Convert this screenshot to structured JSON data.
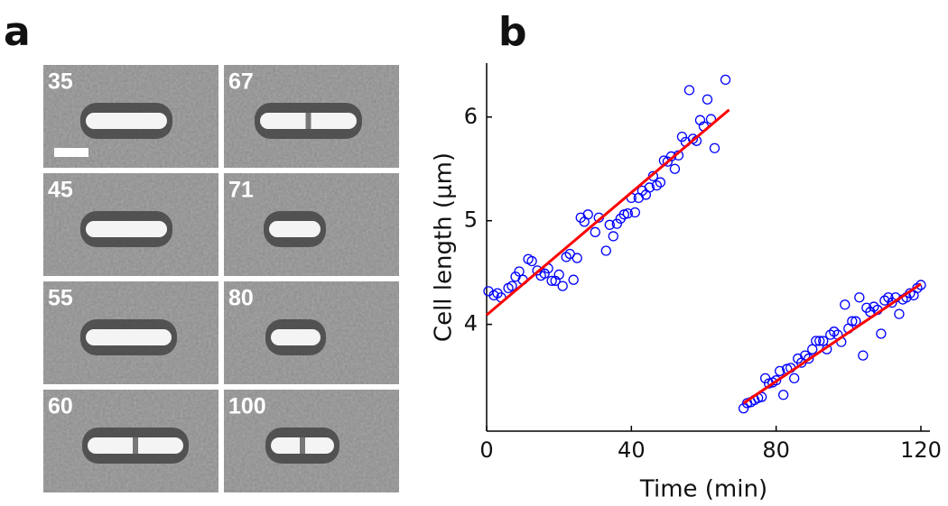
{
  "panel_labels": [
    "a",
    "b"
  ],
  "frames": [
    "35",
    "67",
    "45",
    "71",
    "55",
    "80",
    "60",
    "100"
  ],
  "chart_data": {
    "type": "scatter",
    "xlabel": "Time (min)",
    "ylabel": "Cell length (μm)",
    "xlim": [
      0,
      122.5
    ],
    "ylim": [
      2.97,
      6.52
    ],
    "xticks": [
      0,
      40,
      80,
      120
    ],
    "yticks": [
      4,
      5,
      6
    ],
    "series": [
      {
        "kind": "points",
        "color": "#0000ff",
        "x": [
          0.5,
          2,
          3,
          4,
          6,
          7,
          8,
          9,
          10,
          11.5,
          12.5,
          14,
          15,
          16,
          17,
          18,
          19,
          20,
          21,
          22,
          23,
          24,
          25,
          26,
          27,
          28,
          30,
          31,
          33,
          34,
          35,
          36,
          37,
          38,
          39,
          40,
          41,
          42,
          43,
          44,
          45,
          46,
          47,
          48,
          49,
          50,
          51,
          52,
          53,
          54,
          55,
          56,
          57,
          58,
          59,
          60,
          61,
          62,
          63,
          66,
          71,
          72,
          73,
          74,
          75,
          76,
          77,
          78,
          79,
          80,
          81,
          82,
          83,
          84,
          85,
          86,
          87,
          88,
          89,
          90,
          91,
          92,
          93,
          94,
          95,
          96,
          97,
          98,
          99,
          100,
          101,
          102,
          103,
          104,
          105,
          106,
          107,
          108,
          109,
          110,
          111,
          112,
          113,
          114,
          115,
          116,
          117,
          118,
          119,
          120
        ],
        "values": [
          4.32,
          4.28,
          4.3,
          4.26,
          4.35,
          4.37,
          4.46,
          4.51,
          4.43,
          4.63,
          4.61,
          4.52,
          4.47,
          4.49,
          4.54,
          4.42,
          4.42,
          4.48,
          4.37,
          4.65,
          4.68,
          4.43,
          4.64,
          5.03,
          4.99,
          5.06,
          4.89,
          5.03,
          4.71,
          4.96,
          4.85,
          4.97,
          5.02,
          5.06,
          5.07,
          5.22,
          5.08,
          5.22,
          5.29,
          5.25,
          5.32,
          5.43,
          5.34,
          5.37,
          5.58,
          5.57,
          5.62,
          5.5,
          5.63,
          5.81,
          5.76,
          6.26,
          5.79,
          5.77,
          5.97,
          5.91,
          6.17,
          5.98,
          5.7,
          6.36,
          3.19,
          3.24,
          3.25,
          3.27,
          3.29,
          3.3,
          3.48,
          3.43,
          3.44,
          3.46,
          3.55,
          3.32,
          3.57,
          3.58,
          3.48,
          3.67,
          3.63,
          3.7,
          3.67,
          3.76,
          3.84,
          3.84,
          3.84,
          3.76,
          3.9,
          3.93,
          3.9,
          3.83,
          4.19,
          3.96,
          4.03,
          4.03,
          4.26,
          3.7,
          4.16,
          4.12,
          4.17,
          4.14,
          3.91,
          4.23,
          4.26,
          4.21,
          4.26,
          4.1,
          4.24,
          4.26,
          4.3,
          4.28,
          4.35,
          4.38
        ]
      },
      {
        "kind": "line",
        "color": "#ff0000",
        "x": [
          0,
          67
        ],
        "values": [
          4.09,
          6.07
        ]
      },
      {
        "kind": "line",
        "color": "#ff0000",
        "x": [
          71,
          120
        ],
        "values": [
          3.24,
          4.39
        ]
      }
    ]
  }
}
